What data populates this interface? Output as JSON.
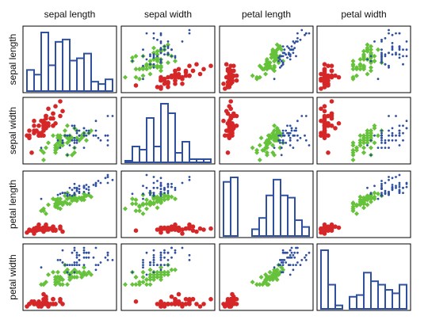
{
  "chart_data": {
    "type": "scatter",
    "variables": [
      "sepal length",
      "sepal width",
      "petal length",
      "petal width"
    ],
    "axis_ranges": {
      "sepal length": [
        4.3,
        7.9
      ],
      "sepal width": [
        2.0,
        4.4
      ],
      "petal length": [
        1.0,
        6.9
      ],
      "petal width": [
        0.1,
        2.5
      ]
    },
    "diagonal": "histogram",
    "grid": false,
    "legend": "none",
    "colors": {
      "setosa": "#d62728",
      "versicolor": "#66c23a",
      "virginica": "#2f4f9f",
      "histogram": "#2f4f9f",
      "frame": "#000000"
    },
    "markers": {
      "setosa": "circle",
      "versicolor": "diamond",
      "virginica": "dot"
    },
    "series": [
      {
        "values": [
          [
            5.1,
            3.5,
            1.4,
            0.2
          ],
          [
            4.9,
            3.0,
            1.4,
            0.2
          ],
          [
            4.7,
            3.2,
            1.3,
            0.2
          ],
          [
            4.6,
            3.1,
            1.5,
            0.2
          ],
          [
            5.0,
            3.6,
            1.4,
            0.2
          ],
          [
            5.4,
            3.9,
            1.7,
            0.4
          ],
          [
            4.6,
            3.4,
            1.4,
            0.3
          ],
          [
            5.0,
            3.4,
            1.5,
            0.2
          ],
          [
            4.4,
            2.9,
            1.4,
            0.2
          ],
          [
            4.9,
            3.1,
            1.5,
            0.1
          ],
          [
            5.4,
            3.7,
            1.5,
            0.2
          ],
          [
            4.8,
            3.4,
            1.6,
            0.2
          ],
          [
            4.8,
            3.0,
            1.4,
            0.1
          ],
          [
            4.3,
            3.0,
            1.1,
            0.1
          ],
          [
            5.8,
            4.0,
            1.2,
            0.2
          ],
          [
            5.7,
            4.4,
            1.5,
            0.4
          ],
          [
            5.4,
            3.9,
            1.3,
            0.4
          ],
          [
            5.1,
            3.5,
            1.4,
            0.3
          ],
          [
            5.7,
            3.8,
            1.7,
            0.3
          ],
          [
            5.1,
            3.8,
            1.5,
            0.3
          ],
          [
            5.4,
            3.4,
            1.7,
            0.2
          ],
          [
            5.1,
            3.7,
            1.5,
            0.4
          ],
          [
            4.6,
            3.6,
            1.0,
            0.2
          ],
          [
            5.1,
            3.3,
            1.7,
            0.5
          ],
          [
            4.8,
            3.4,
            1.9,
            0.2
          ],
          [
            5.0,
            3.0,
            1.6,
            0.2
          ],
          [
            5.0,
            3.4,
            1.6,
            0.4
          ],
          [
            5.2,
            3.5,
            1.5,
            0.2
          ],
          [
            5.2,
            3.4,
            1.4,
            0.2
          ],
          [
            4.7,
            3.2,
            1.6,
            0.2
          ],
          [
            4.8,
            3.1,
            1.6,
            0.2
          ],
          [
            5.4,
            3.4,
            1.5,
            0.4
          ],
          [
            5.2,
            4.1,
            1.5,
            0.1
          ],
          [
            5.5,
            4.2,
            1.4,
            0.2
          ],
          [
            4.9,
            3.1,
            1.5,
            0.2
          ],
          [
            5.0,
            3.2,
            1.2,
            0.2
          ],
          [
            5.5,
            3.5,
            1.3,
            0.2
          ],
          [
            4.9,
            3.6,
            1.4,
            0.1
          ],
          [
            4.4,
            3.0,
            1.3,
            0.2
          ],
          [
            5.1,
            3.4,
            1.5,
            0.2
          ],
          [
            5.0,
            3.5,
            1.3,
            0.3
          ],
          [
            4.5,
            2.3,
            1.3,
            0.3
          ],
          [
            4.4,
            3.2,
            1.3,
            0.2
          ],
          [
            5.0,
            3.5,
            1.6,
            0.6
          ],
          [
            5.1,
            3.8,
            1.9,
            0.4
          ],
          [
            4.8,
            3.0,
            1.4,
            0.3
          ],
          [
            5.1,
            3.8,
            1.6,
            0.2
          ],
          [
            4.6,
            3.2,
            1.4,
            0.2
          ],
          [
            5.3,
            3.7,
            1.5,
            0.2
          ],
          [
            5.0,
            3.3,
            1.4,
            0.2
          ]
        ]
      },
      {
        "values": [
          [
            7.0,
            3.2,
            4.7,
            1.4
          ],
          [
            6.4,
            3.2,
            4.5,
            1.5
          ],
          [
            6.9,
            3.1,
            4.9,
            1.5
          ],
          [
            5.5,
            2.3,
            4.0,
            1.3
          ],
          [
            6.5,
            2.8,
            4.6,
            1.5
          ],
          [
            5.7,
            2.8,
            4.5,
            1.3
          ],
          [
            6.3,
            3.3,
            4.7,
            1.6
          ],
          [
            4.9,
            2.4,
            3.3,
            1.0
          ],
          [
            6.6,
            2.9,
            4.6,
            1.3
          ],
          [
            5.2,
            2.7,
            3.9,
            1.4
          ],
          [
            5.0,
            2.0,
            3.5,
            1.0
          ],
          [
            5.9,
            3.0,
            4.2,
            1.5
          ],
          [
            6.0,
            2.2,
            4.0,
            1.0
          ],
          [
            6.1,
            2.9,
            4.7,
            1.4
          ],
          [
            5.6,
            2.9,
            3.6,
            1.3
          ],
          [
            6.7,
            3.1,
            4.4,
            1.4
          ],
          [
            5.6,
            3.0,
            4.5,
            1.5
          ],
          [
            5.8,
            2.7,
            4.1,
            1.0
          ],
          [
            6.2,
            2.2,
            4.5,
            1.5
          ],
          [
            5.6,
            2.5,
            3.9,
            1.1
          ],
          [
            5.9,
            3.2,
            4.8,
            1.8
          ],
          [
            6.1,
            2.8,
            4.0,
            1.3
          ],
          [
            6.3,
            2.5,
            4.9,
            1.5
          ],
          [
            6.1,
            2.8,
            4.7,
            1.2
          ],
          [
            6.4,
            2.9,
            4.3,
            1.3
          ],
          [
            6.6,
            3.0,
            4.4,
            1.4
          ],
          [
            6.8,
            2.8,
            4.8,
            1.4
          ],
          [
            6.7,
            3.0,
            5.0,
            1.7
          ],
          [
            6.0,
            2.9,
            4.5,
            1.5
          ],
          [
            5.7,
            2.6,
            3.5,
            1.0
          ],
          [
            5.5,
            2.4,
            3.8,
            1.1
          ],
          [
            5.5,
            2.4,
            3.7,
            1.0
          ],
          [
            5.8,
            2.7,
            3.9,
            1.2
          ],
          [
            6.0,
            2.7,
            5.1,
            1.6
          ],
          [
            5.4,
            3.0,
            4.5,
            1.5
          ],
          [
            6.0,
            3.4,
            4.5,
            1.6
          ],
          [
            6.7,
            3.1,
            4.7,
            1.5
          ],
          [
            6.3,
            2.3,
            4.4,
            1.3
          ],
          [
            5.6,
            3.0,
            4.1,
            1.3
          ],
          [
            5.5,
            2.5,
            4.0,
            1.3
          ],
          [
            5.5,
            2.6,
            4.4,
            1.2
          ],
          [
            6.1,
            3.0,
            4.6,
            1.4
          ],
          [
            5.8,
            2.6,
            4.0,
            1.2
          ],
          [
            5.0,
            2.3,
            3.3,
            1.0
          ],
          [
            5.6,
            2.7,
            4.2,
            1.3
          ],
          [
            5.7,
            3.0,
            4.2,
            1.2
          ],
          [
            5.7,
            2.9,
            4.2,
            1.3
          ],
          [
            6.2,
            2.9,
            4.3,
            1.3
          ],
          [
            5.1,
            2.5,
            3.0,
            1.1
          ],
          [
            5.7,
            2.8,
            4.1,
            1.3
          ]
        ]
      },
      {
        "values": [
          [
            6.3,
            3.3,
            6.0,
            2.5
          ],
          [
            5.8,
            2.7,
            5.1,
            1.9
          ],
          [
            7.1,
            3.0,
            5.9,
            2.1
          ],
          [
            6.3,
            2.9,
            5.6,
            1.8
          ],
          [
            6.5,
            3.0,
            5.8,
            2.2
          ],
          [
            7.6,
            3.0,
            6.6,
            2.1
          ],
          [
            4.9,
            2.5,
            4.5,
            1.7
          ],
          [
            7.3,
            2.9,
            6.3,
            1.8
          ],
          [
            6.7,
            2.5,
            5.8,
            1.8
          ],
          [
            7.2,
            3.6,
            6.1,
            2.5
          ],
          [
            6.5,
            3.2,
            5.1,
            2.0
          ],
          [
            6.4,
            2.7,
            5.3,
            1.9
          ],
          [
            6.8,
            3.0,
            5.5,
            2.1
          ],
          [
            5.7,
            2.5,
            5.0,
            2.0
          ],
          [
            5.8,
            2.8,
            5.1,
            2.4
          ],
          [
            6.4,
            3.2,
            5.3,
            2.3
          ],
          [
            6.5,
            3.0,
            5.5,
            1.8
          ],
          [
            7.7,
            3.8,
            6.7,
            2.2
          ],
          [
            7.7,
            2.6,
            6.9,
            2.3
          ],
          [
            6.0,
            2.2,
            5.0,
            1.5
          ],
          [
            6.9,
            3.2,
            5.7,
            2.3
          ],
          [
            5.6,
            2.8,
            4.9,
            2.0
          ],
          [
            7.7,
            2.8,
            6.7,
            2.0
          ],
          [
            6.3,
            2.7,
            4.9,
            1.8
          ],
          [
            6.7,
            3.3,
            5.7,
            2.1
          ],
          [
            7.2,
            3.2,
            6.0,
            1.8
          ],
          [
            6.2,
            2.8,
            4.8,
            1.8
          ],
          [
            6.1,
            3.0,
            4.9,
            1.8
          ],
          [
            6.4,
            2.8,
            5.6,
            2.1
          ],
          [
            7.2,
            3.0,
            5.8,
            1.6
          ],
          [
            7.4,
            2.8,
            6.1,
            1.9
          ],
          [
            7.9,
            3.8,
            6.4,
            2.0
          ],
          [
            6.4,
            2.8,
            5.6,
            2.2
          ],
          [
            6.3,
            2.8,
            5.1,
            1.5
          ],
          [
            6.1,
            2.6,
            5.6,
            1.4
          ],
          [
            7.7,
            3.0,
            6.1,
            2.3
          ],
          [
            6.3,
            3.4,
            5.6,
            2.4
          ],
          [
            6.4,
            3.1,
            5.5,
            1.8
          ],
          [
            6.0,
            3.0,
            4.8,
            1.8
          ],
          [
            6.9,
            3.1,
            5.4,
            2.1
          ],
          [
            6.7,
            3.1,
            5.6,
            2.4
          ],
          [
            6.9,
            3.1,
            5.1,
            2.3
          ],
          [
            5.8,
            2.7,
            5.1,
            1.9
          ],
          [
            6.8,
            3.2,
            5.9,
            2.3
          ],
          [
            6.7,
            3.3,
            5.7,
            2.5
          ],
          [
            6.7,
            3.0,
            5.2,
            2.3
          ],
          [
            6.3,
            2.5,
            5.0,
            1.9
          ],
          [
            6.5,
            3.0,
            5.2,
            2.0
          ],
          [
            6.2,
            3.4,
            5.4,
            2.3
          ],
          [
            5.9,
            3.0,
            5.1,
            1.8
          ]
        ]
      }
    ]
  }
}
